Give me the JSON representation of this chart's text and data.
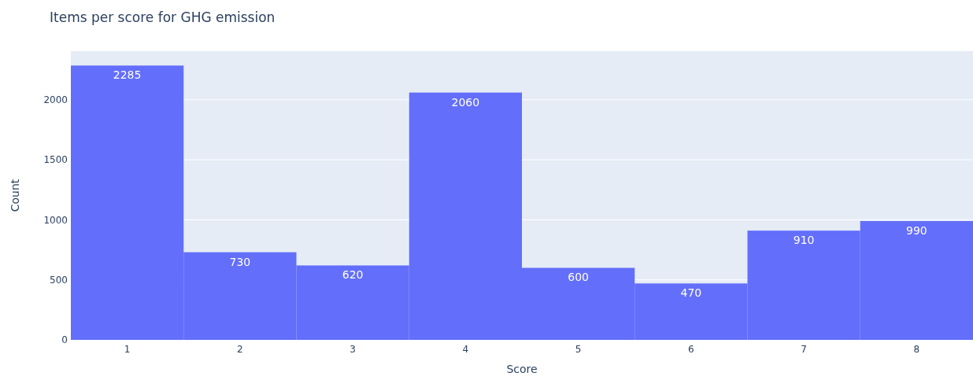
{
  "chart_data": {
    "type": "bar",
    "title": "Items per score for GHG emission",
    "xlabel": "Score",
    "ylabel": "Count",
    "categories": [
      "1",
      "2",
      "3",
      "4",
      "5",
      "6",
      "7",
      "8"
    ],
    "values": [
      2285,
      730,
      620,
      2060,
      600,
      470,
      910,
      990
    ],
    "color": "#636efa",
    "ylim": [
      0,
      2405
    ],
    "yticks": [
      0,
      500,
      1000,
      1500,
      2000
    ],
    "grid": "y",
    "data_labels": true
  }
}
